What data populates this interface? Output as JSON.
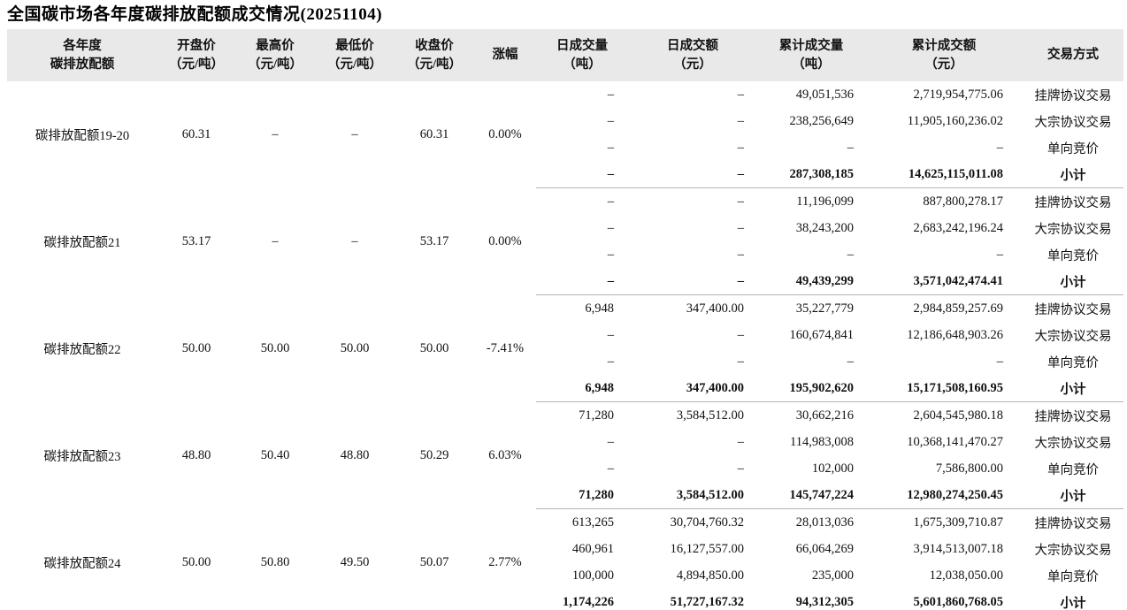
{
  "title": "全国碳市场各年度碳排放配额成交情况(20251104)",
  "table": {
    "headers": [
      {
        "line1": "各年度",
        "line2": "碳排放配额"
      },
      {
        "line1": "开盘价",
        "line2": "（元/吨）"
      },
      {
        "line1": "最高价",
        "line2": "（元/吨）"
      },
      {
        "line1": "最低价",
        "line2": "（元/吨）"
      },
      {
        "line1": "收盘价",
        "line2": "（元/吨）"
      },
      {
        "line1": "涨幅",
        "line2": ""
      },
      {
        "line1": "日成交量",
        "line2": "（吨）"
      },
      {
        "line1": "日成交额",
        "line2": "（元）"
      },
      {
        "line1": "累计成交量",
        "line2": "（吨）"
      },
      {
        "line1": "累计成交额",
        "line2": "（元）"
      },
      {
        "line1": "交易方式",
        "line2": ""
      }
    ],
    "groups": [
      {
        "name": "碳排放配额19-20",
        "open": "60.31",
        "high": "–",
        "low": "–",
        "close": "60.31",
        "change": "0.00%",
        "rows": [
          {
            "daily_volume": "–",
            "daily_amount": "–",
            "cum_volume": "49,051,536",
            "cum_amount": "2,719,954,775.06",
            "method": "挂牌协议交易"
          },
          {
            "daily_volume": "–",
            "daily_amount": "–",
            "cum_volume": "238,256,649",
            "cum_amount": "11,905,160,236.02",
            "method": "大宗协议交易"
          },
          {
            "daily_volume": "–",
            "daily_amount": "–",
            "cum_volume": "–",
            "cum_amount": "–",
            "method": "单向竞价"
          },
          {
            "daily_volume": "–",
            "daily_amount": "–",
            "cum_volume": "287,308,185",
            "cum_amount": "14,625,115,011.08",
            "method": "小计"
          }
        ]
      },
      {
        "name": "碳排放配额21",
        "open": "53.17",
        "high": "–",
        "low": "–",
        "close": "53.17",
        "change": "0.00%",
        "rows": [
          {
            "daily_volume": "–",
            "daily_amount": "–",
            "cum_volume": "11,196,099",
            "cum_amount": "887,800,278.17",
            "method": "挂牌协议交易"
          },
          {
            "daily_volume": "–",
            "daily_amount": "–",
            "cum_volume": "38,243,200",
            "cum_amount": "2,683,242,196.24",
            "method": "大宗协议交易"
          },
          {
            "daily_volume": "–",
            "daily_amount": "–",
            "cum_volume": "–",
            "cum_amount": "–",
            "method": "单向竞价"
          },
          {
            "daily_volume": "–",
            "daily_amount": "–",
            "cum_volume": "49,439,299",
            "cum_amount": "3,571,042,474.41",
            "method": "小计"
          }
        ]
      },
      {
        "name": "碳排放配额22",
        "open": "50.00",
        "high": "50.00",
        "low": "50.00",
        "close": "50.00",
        "change": "-7.41%",
        "rows": [
          {
            "daily_volume": "6,948",
            "daily_amount": "347,400.00",
            "cum_volume": "35,227,779",
            "cum_amount": "2,984,859,257.69",
            "method": "挂牌协议交易"
          },
          {
            "daily_volume": "–",
            "daily_amount": "–",
            "cum_volume": "160,674,841",
            "cum_amount": "12,186,648,903.26",
            "method": "大宗协议交易"
          },
          {
            "daily_volume": "–",
            "daily_amount": "–",
            "cum_volume": "–",
            "cum_amount": "–",
            "method": "单向竞价"
          },
          {
            "daily_volume": "6,948",
            "daily_amount": "347,400.00",
            "cum_volume": "195,902,620",
            "cum_amount": "15,171,508,160.95",
            "method": "小计"
          }
        ]
      },
      {
        "name": "碳排放配额23",
        "open": "48.80",
        "high": "50.40",
        "low": "48.80",
        "close": "50.29",
        "change": "6.03%",
        "rows": [
          {
            "daily_volume": "71,280",
            "daily_amount": "3,584,512.00",
            "cum_volume": "30,662,216",
            "cum_amount": "2,604,545,980.18",
            "method": "挂牌协议交易"
          },
          {
            "daily_volume": "–",
            "daily_amount": "–",
            "cum_volume": "114,983,008",
            "cum_amount": "10,368,141,470.27",
            "method": "大宗协议交易"
          },
          {
            "daily_volume": "–",
            "daily_amount": "–",
            "cum_volume": "102,000",
            "cum_amount": "7,586,800.00",
            "method": "单向竞价"
          },
          {
            "daily_volume": "71,280",
            "daily_amount": "3,584,512.00",
            "cum_volume": "145,747,224",
            "cum_amount": "12,980,274,250.45",
            "method": "小计"
          }
        ]
      },
      {
        "name": "碳排放配额24",
        "open": "50.00",
        "high": "50.80",
        "low": "49.50",
        "close": "50.07",
        "change": "2.77%",
        "rows": [
          {
            "daily_volume": "613,265",
            "daily_amount": "30,704,760.32",
            "cum_volume": "28,013,036",
            "cum_amount": "1,675,309,710.87",
            "method": "挂牌协议交易"
          },
          {
            "daily_volume": "460,961",
            "daily_amount": "16,127,557.00",
            "cum_volume": "66,064,269",
            "cum_amount": "3,914,513,007.18",
            "method": "大宗协议交易"
          },
          {
            "daily_volume": "100,000",
            "daily_amount": "4,894,850.00",
            "cum_volume": "235,000",
            "cum_amount": "12,038,050.00",
            "method": "单向竞价"
          },
          {
            "daily_volume": "1,174,226",
            "daily_amount": "51,727,167.32",
            "cum_volume": "94,312,305",
            "cum_amount": "5,601,860,768.05",
            "method": "小计"
          }
        ]
      }
    ]
  },
  "colors": {
    "header_bg": "#e9e9e9",
    "separator": "#b3b3b3",
    "text": "#111111"
  }
}
